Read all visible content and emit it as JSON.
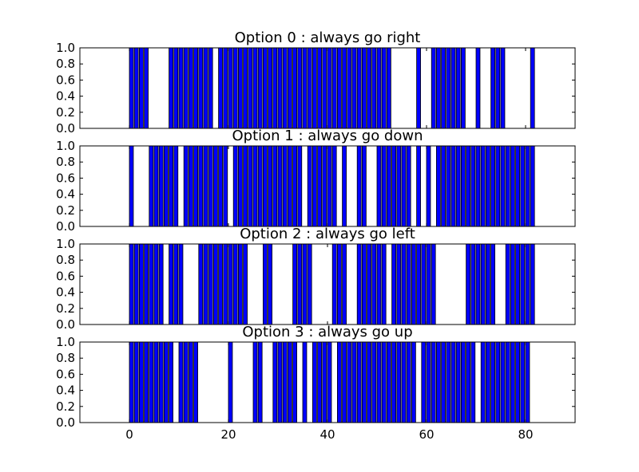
{
  "chart_data": {
    "type": "bar",
    "layout": "4 stacked subplots sharing x axis",
    "xlim": [
      -10,
      90
    ],
    "ylim": [
      0,
      1
    ],
    "x_ticks": [
      "0",
      "20",
      "40",
      "60",
      "80"
    ],
    "y_ticks": [
      "0.0",
      "0.2",
      "0.4",
      "0.6",
      "0.8",
      "1.0"
    ],
    "grid": false,
    "bar_color": "#0000ff",
    "bar_edge_color": "#000000",
    "subplots": [
      {
        "title": "Option 0 : always go right",
        "x": [
          0,
          1,
          2,
          3,
          8,
          9,
          10,
          11,
          12,
          13,
          14,
          15,
          16,
          18,
          19,
          20,
          21,
          22,
          23,
          24,
          25,
          26,
          27,
          28,
          29,
          30,
          31,
          32,
          33,
          34,
          35,
          36,
          37,
          38,
          39,
          40,
          41,
          42,
          43,
          44,
          45,
          46,
          47,
          48,
          49,
          50,
          51,
          52,
          58,
          61,
          62,
          63,
          64,
          65,
          66,
          67,
          70,
          73,
          74,
          75,
          81
        ],
        "values": [
          1,
          1,
          1,
          1,
          1,
          1,
          1,
          1,
          1,
          1,
          1,
          1,
          1,
          1,
          1,
          1,
          1,
          1,
          1,
          1,
          1,
          1,
          1,
          1,
          1,
          1,
          1,
          1,
          1,
          1,
          1,
          1,
          1,
          1,
          1,
          1,
          1,
          1,
          1,
          1,
          1,
          1,
          1,
          1,
          1,
          1,
          1,
          1,
          1,
          1,
          1,
          1,
          1,
          1,
          1,
          1,
          1,
          1,
          1,
          1,
          1
        ]
      },
      {
        "title": "Option 1 : always go down",
        "x": [
          0,
          4,
          5,
          6,
          7,
          8,
          9,
          11,
          12,
          13,
          14,
          15,
          16,
          17,
          18,
          19,
          21,
          22,
          23,
          24,
          25,
          26,
          27,
          28,
          29,
          30,
          31,
          32,
          33,
          34,
          36,
          37,
          38,
          39,
          40,
          41,
          43,
          46,
          47,
          50,
          51,
          52,
          53,
          54,
          55,
          56,
          58,
          60,
          62,
          63,
          64,
          65,
          66,
          67,
          68,
          69,
          70,
          71,
          72,
          73,
          74,
          75,
          76,
          77,
          78,
          79,
          80,
          81
        ],
        "values": [
          1,
          1,
          1,
          1,
          1,
          1,
          1,
          1,
          1,
          1,
          1,
          1,
          1,
          1,
          1,
          1,
          1,
          1,
          1,
          1,
          1,
          1,
          1,
          1,
          1,
          1,
          1,
          1,
          1,
          1,
          1,
          1,
          1,
          1,
          1,
          1,
          1,
          1,
          1,
          1,
          1,
          1,
          1,
          1,
          1,
          1,
          1,
          1,
          1,
          1,
          1,
          1,
          1,
          1,
          1,
          1,
          1,
          1,
          1,
          1,
          1,
          1,
          1,
          1,
          1,
          1,
          1,
          1
        ]
      },
      {
        "title": "Option 2 : always go left",
        "x": [
          0,
          1,
          2,
          3,
          4,
          5,
          6,
          8,
          9,
          10,
          14,
          15,
          16,
          17,
          18,
          19,
          20,
          21,
          22,
          23,
          27,
          28,
          33,
          34,
          35,
          36,
          41,
          42,
          43,
          46,
          47,
          48,
          49,
          50,
          51,
          53,
          54,
          55,
          56,
          57,
          58,
          59,
          60,
          61,
          68,
          69,
          70,
          71,
          72,
          73,
          76,
          77,
          78,
          79,
          80,
          81
        ],
        "values": [
          1,
          1,
          1,
          1,
          1,
          1,
          1,
          1,
          1,
          1,
          1,
          1,
          1,
          1,
          1,
          1,
          1,
          1,
          1,
          1,
          1,
          1,
          1,
          1,
          1,
          1,
          1,
          1,
          1,
          1,
          1,
          1,
          1,
          1,
          1,
          1,
          1,
          1,
          1,
          1,
          1,
          1,
          1,
          1,
          1,
          1,
          1,
          1,
          1,
          1,
          1,
          1,
          1,
          1,
          1,
          1
        ]
      },
      {
        "title": "Option 3 : always go up",
        "x": [
          0,
          1,
          2,
          3,
          4,
          5,
          6,
          7,
          8,
          10,
          11,
          12,
          13,
          20,
          25,
          26,
          29,
          30,
          31,
          32,
          33,
          35,
          37,
          38,
          39,
          40,
          42,
          43,
          44,
          45,
          46,
          47,
          48,
          49,
          50,
          51,
          52,
          53,
          54,
          55,
          56,
          57,
          59,
          60,
          61,
          62,
          63,
          64,
          65,
          66,
          67,
          68,
          69,
          71,
          72,
          73,
          74,
          75,
          76,
          77,
          78,
          79,
          80
        ],
        "values": [
          1,
          1,
          1,
          1,
          1,
          1,
          1,
          1,
          1,
          1,
          1,
          1,
          1,
          1,
          1,
          1,
          1,
          1,
          1,
          1,
          1,
          1,
          1,
          1,
          1,
          1,
          1,
          1,
          1,
          1,
          1,
          1,
          1,
          1,
          1,
          1,
          1,
          1,
          1,
          1,
          1,
          1,
          1,
          1,
          1,
          1,
          1,
          1,
          1,
          1,
          1,
          1,
          1,
          1,
          1,
          1,
          1,
          1,
          1,
          1,
          1,
          1,
          1
        ]
      }
    ]
  }
}
